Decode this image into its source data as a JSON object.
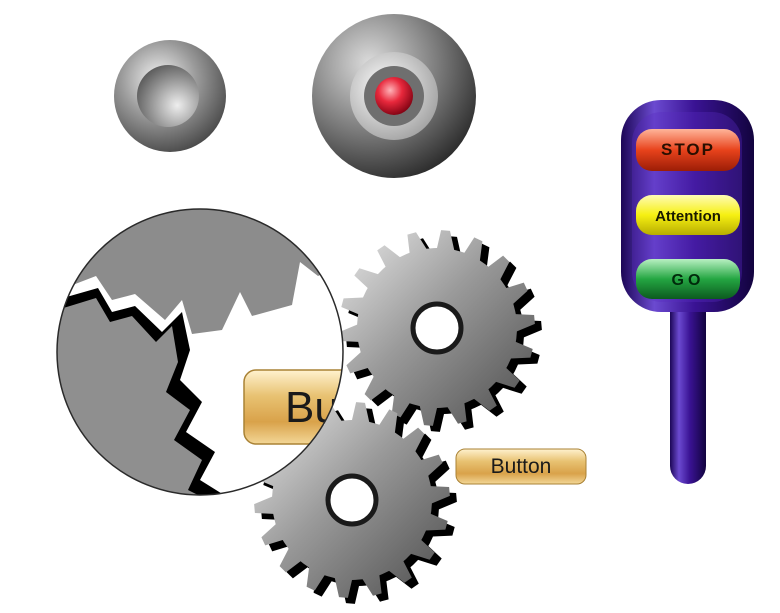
{
  "traffic_light": {
    "stop_label": "STOP",
    "attention_label": "Attention",
    "go_label": "GO"
  },
  "buttons": {
    "small_label": "Button",
    "magnified_label": "Button"
  },
  "colors": {
    "stop": "#d83a1a",
    "attention": "#f2ee10",
    "go": "#1f9a3c",
    "traffic_light_body": "#3a0e84",
    "indicator_light": "#e0263a",
    "wood": "#e7c27a"
  },
  "icons": [
    "round-knob-icon",
    "indicator-lamp-icon",
    "gear-icon",
    "magnifier-icon",
    "traffic-light-icon"
  ]
}
